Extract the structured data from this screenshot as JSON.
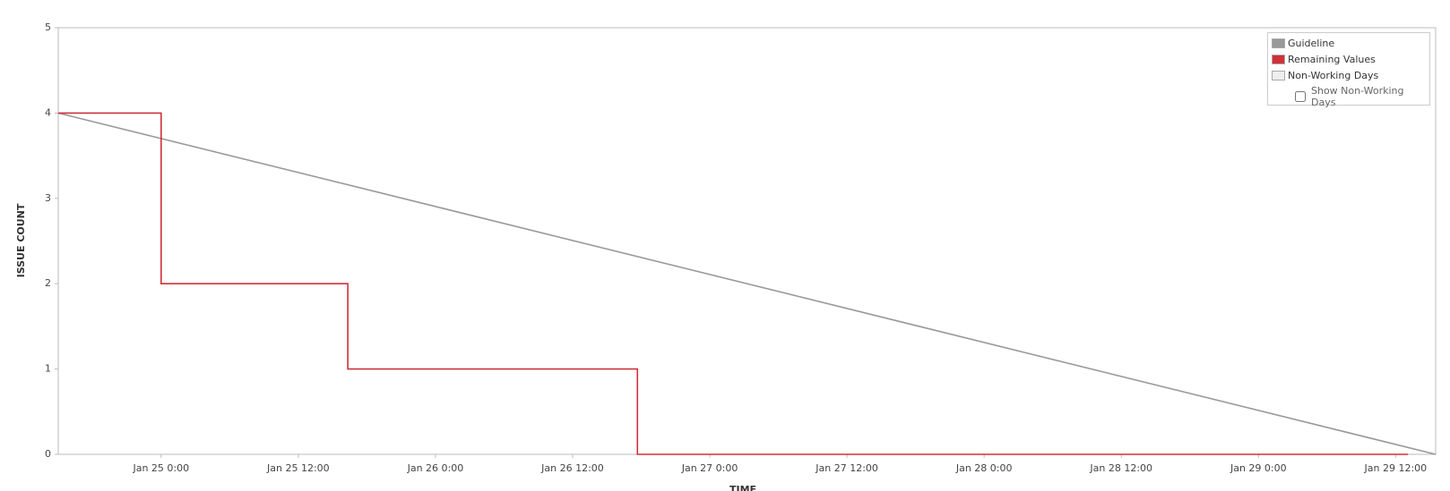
{
  "chart_data": {
    "type": "line",
    "y_label": "ISSUE COUNT",
    "x_label": "TIME",
    "xlim": [
      "Jan 24 15:00",
      "Jan 29 15:30"
    ],
    "xticks": [
      "Jan 25 0:00",
      "Jan 25 12:00",
      "Jan 26 0:00",
      "Jan 26 12:00",
      "Jan 27 0:00",
      "Jan 27 12:00",
      "Jan 28 0:00",
      "Jan 28 12:00",
      "Jan 29 0:00",
      "Jan 29 12:00"
    ],
    "ylim": [
      0,
      5
    ],
    "yticks": [
      0,
      1,
      2,
      3,
      4,
      5
    ],
    "series": [
      {
        "name": "Guideline",
        "color": "#999999",
        "step": false,
        "x": [
          "Jan 24 15:00",
          "Jan 29 15:30"
        ],
        "values": [
          4,
          0
        ]
      },
      {
        "name": "Remaining Values",
        "color": "#d0313a",
        "step": true,
        "x": [
          "Jan 24 15:00",
          "Jan 25 0:00",
          "Jan 25 16:20",
          "Jan 26 17:40",
          "Jan 29 13:05"
        ],
        "values": [
          4,
          2,
          1,
          0,
          0
        ]
      }
    ],
    "legend_extra": {
      "name": "Non-Working Days",
      "color": "#eeeeee"
    },
    "toggle_label": "Show Non-Working Days"
  }
}
